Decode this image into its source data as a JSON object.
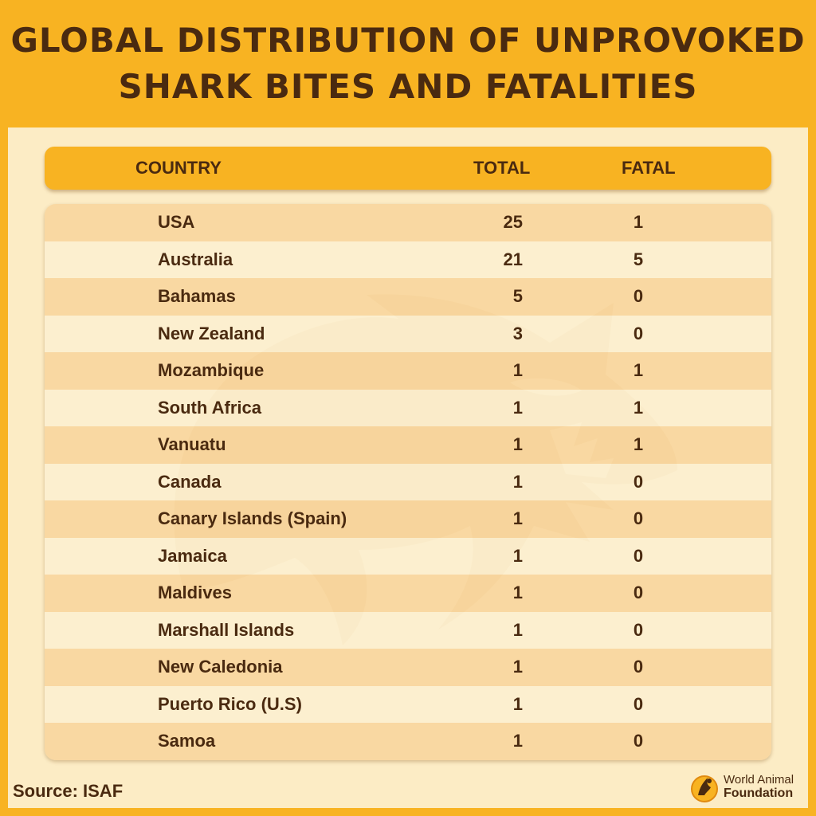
{
  "title": {
    "line1": "GLOBAL DISTRIBUTION OF UNPROVOKED",
    "line2": "SHARK BITES AND FATALITIES"
  },
  "colors": {
    "background": "#f8b322",
    "panel": "#fcecc5",
    "text": "#4a2a10"
  },
  "chart_data": {
    "type": "table",
    "columns": [
      "COUNTRY",
      "TOTAL",
      "FATAL"
    ],
    "rows": [
      {
        "country": "USA",
        "total": 25,
        "fatal": 1
      },
      {
        "country": "Australia",
        "total": 21,
        "fatal": 5
      },
      {
        "country": "Bahamas",
        "total": 5,
        "fatal": 0
      },
      {
        "country": "New Zealand",
        "total": 3,
        "fatal": 0
      },
      {
        "country": "Mozambique",
        "total": 1,
        "fatal": 1
      },
      {
        "country": "South Africa",
        "total": 1,
        "fatal": 1
      },
      {
        "country": "Vanuatu",
        "total": 1,
        "fatal": 1
      },
      {
        "country": "Canada",
        "total": 1,
        "fatal": 0
      },
      {
        "country": "Canary Islands (Spain)",
        "total": 1,
        "fatal": 0
      },
      {
        "country": "Jamaica",
        "total": 1,
        "fatal": 0
      },
      {
        "country": "Maldives",
        "total": 1,
        "fatal": 0
      },
      {
        "country": "Marshall Islands",
        "total": 1,
        "fatal": 0
      },
      {
        "country": "New Caledonia",
        "total": 1,
        "fatal": 0
      },
      {
        "country": "Puerto Rico (U.S)",
        "total": 1,
        "fatal": 0
      },
      {
        "country": "Samoa",
        "total": 1,
        "fatal": 0
      }
    ]
  },
  "source": "Source: ISAF",
  "logo": {
    "line1": "World Animal",
    "line2": "Foundation",
    "icon": "world-animal-foundation-logo-icon"
  },
  "watermark_icon": "shark-silhouette-icon"
}
